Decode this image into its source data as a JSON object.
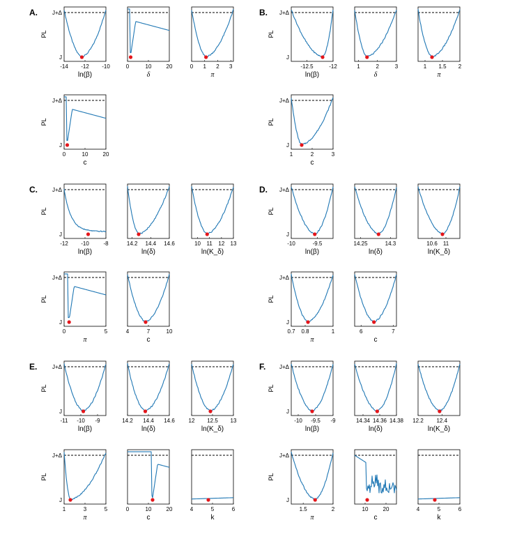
{
  "y_top_label": "J+Δ",
  "y_bottom_label": "J",
  "y_axis_title": "PL",
  "chart_data": [
    {
      "panel": "A.",
      "type": "line",
      "xlabel": "ln(β)",
      "italic": false,
      "xlim": [
        -14,
        -10
      ],
      "xticks": [
        "-14",
        "-12",
        "-10"
      ],
      "xtickvals": [
        -14,
        -12,
        -10
      ],
      "optimum": -12.3,
      "shape": "u",
      "threshold": true
    },
    {
      "panel": "A.",
      "type": "line",
      "xlabel": "δ",
      "italic": true,
      "xlim": [
        0,
        20
      ],
      "xticks": [
        "0",
        "10",
        "20"
      ],
      "xtickvals": [
        0,
        10,
        20
      ],
      "optimum": 1.5,
      "shape": "spike",
      "threshold": true
    },
    {
      "panel": "A.",
      "type": "line",
      "xlabel": "π",
      "italic": true,
      "xlim": [
        0,
        3.2
      ],
      "xticks": [
        "0",
        "1",
        "2",
        "3"
      ],
      "xtickvals": [
        0,
        1,
        2,
        3
      ],
      "optimum": 1.1,
      "shape": "u",
      "threshold": true
    },
    {
      "panel": "A.",
      "type": "line",
      "xlabel": "c",
      "italic": false,
      "xlim": [
        0,
        20
      ],
      "xticks": [
        "0",
        "10",
        "20"
      ],
      "xtickvals": [
        0,
        10,
        20
      ],
      "optimum": 1.5,
      "shape": "spike",
      "threshold": true
    },
    {
      "panel": "B.",
      "type": "line",
      "xlabel": "ln(β)",
      "italic": false,
      "xlim": [
        -12.8,
        -12
      ],
      "xticks": [
        "-12.5",
        "-12"
      ],
      "xtickvals": [
        -12.5,
        -12
      ],
      "optimum": -12.2,
      "shape": "u",
      "threshold": true
    },
    {
      "panel": "B.",
      "type": "line",
      "xlabel": "δ",
      "italic": true,
      "xlim": [
        0.8,
        3
      ],
      "xticks": [
        "1",
        "2",
        "3"
      ],
      "xtickvals": [
        1,
        2,
        3
      ],
      "optimum": 1.45,
      "shape": "u",
      "threshold": true
    },
    {
      "panel": "B.",
      "type": "line",
      "xlabel": "π",
      "italic": true,
      "xlim": [
        0.8,
        2
      ],
      "xticks": [
        "1",
        "1.5",
        "2"
      ],
      "xtickvals": [
        1,
        1.5,
        2
      ],
      "optimum": 1.2,
      "shape": "u",
      "threshold": true
    },
    {
      "panel": "B.",
      "type": "line",
      "xlabel": "c",
      "italic": false,
      "xlim": [
        1,
        3
      ],
      "xticks": [
        "1",
        "2",
        "3"
      ],
      "xtickvals": [
        1,
        2,
        3
      ],
      "optimum": 1.5,
      "shape": "u",
      "threshold": true
    },
    {
      "panel": "C.",
      "type": "line",
      "xlabel": "ln(β)",
      "italic": false,
      "xlim": [
        -12,
        -8
      ],
      "xticks": [
        "-12",
        "-10",
        "-8"
      ],
      "xtickvals": [
        -12,
        -10,
        -8
      ],
      "optimum": -9.7,
      "shape": "decay",
      "threshold": true
    },
    {
      "panel": "C.",
      "type": "line",
      "xlabel": "ln(δ)",
      "italic": false,
      "xlim": [
        14.15,
        14.6
      ],
      "xticks": [
        "14.2",
        "14.4",
        "14.6"
      ],
      "xtickvals": [
        14.2,
        14.4,
        14.6
      ],
      "optimum": 14.27,
      "shape": "u",
      "threshold": true
    },
    {
      "panel": "C.",
      "type": "line",
      "xlabel": "ln(K_δ)",
      "italic": false,
      "xlim": [
        9.5,
        13
      ],
      "xticks": [
        "10",
        "11",
        "12",
        "13"
      ],
      "xtickvals": [
        10,
        11,
        12,
        13
      ],
      "optimum": 10.8,
      "shape": "u",
      "threshold": true
    },
    {
      "panel": "C.",
      "type": "line",
      "xlabel": "π",
      "italic": true,
      "xlim": [
        0,
        5
      ],
      "xticks": [
        "0",
        "5"
      ],
      "xtickvals": [
        0,
        5
      ],
      "optimum": 0.6,
      "shape": "spike",
      "threshold": true
    },
    {
      "panel": "C.",
      "type": "line",
      "xlabel": "c",
      "italic": false,
      "xlim": [
        4,
        10
      ],
      "xticks": [
        "4",
        "7",
        "10"
      ],
      "xtickvals": [
        4,
        7,
        10
      ],
      "optimum": 6.6,
      "shape": "u",
      "threshold": true
    },
    {
      "panel": "D.",
      "type": "line",
      "xlabel": "ln(β)",
      "italic": false,
      "xlim": [
        -10,
        -9.2
      ],
      "xticks": [
        "-10",
        "-9.5"
      ],
      "xtickvals": [
        -10,
        -9.5
      ],
      "optimum": -9.55,
      "shape": "u",
      "threshold": true
    },
    {
      "panel": "D.",
      "type": "line",
      "xlabel": "ln(δ)",
      "italic": false,
      "xlim": [
        14.24,
        14.31
      ],
      "xticks": [
        "14.25",
        "14.3"
      ],
      "xtickvals": [
        14.25,
        14.3
      ],
      "optimum": 14.28,
      "shape": "u",
      "threshold": true
    },
    {
      "panel": "D.",
      "type": "line",
      "xlabel": "ln(K_δ)",
      "italic": false,
      "xlim": [
        10.2,
        11.4
      ],
      "xticks": [
        "10.6",
        "11"
      ],
      "xtickvals": [
        10.6,
        11
      ],
      "optimum": 10.9,
      "shape": "u",
      "threshold": true
    },
    {
      "panel": "D.",
      "type": "line",
      "xlabel": "π",
      "italic": true,
      "xlim": [
        0.7,
        1
      ],
      "xticks": [
        "0.7",
        "0.8",
        "1"
      ],
      "xtickvals": [
        0.7,
        0.8,
        1
      ],
      "optimum": 0.82,
      "shape": "u",
      "threshold": true
    },
    {
      "panel": "D.",
      "type": "line",
      "xlabel": "c",
      "italic": false,
      "xlim": [
        5.8,
        7.1
      ],
      "xticks": [
        "6",
        "7"
      ],
      "xtickvals": [
        6,
        7
      ],
      "optimum": 6.4,
      "shape": "u",
      "threshold": true
    },
    {
      "panel": "E.",
      "type": "line",
      "xlabel": "ln(β)",
      "italic": false,
      "xlim": [
        -11,
        -8.5
      ],
      "xticks": [
        "-11",
        "-10",
        "-9"
      ],
      "xtickvals": [
        -11,
        -10,
        -9
      ],
      "optimum": -9.85,
      "shape": "u",
      "threshold": true
    },
    {
      "panel": "E.",
      "type": "line",
      "xlabel": "ln(δ)",
      "italic": false,
      "xlim": [
        14.2,
        14.6
      ],
      "xticks": [
        "14.2",
        "14.4",
        "14.6"
      ],
      "xtickvals": [
        14.2,
        14.4,
        14.6
      ],
      "optimum": 14.37,
      "shape": "u",
      "threshold": true
    },
    {
      "panel": "E.",
      "type": "line",
      "xlabel": "ln(K_δ)",
      "italic": false,
      "xlim": [
        12,
        13
      ],
      "xticks": [
        "12",
        "12.5",
        "13"
      ],
      "xtickvals": [
        12,
        12.5,
        13
      ],
      "optimum": 12.45,
      "shape": "u",
      "threshold": true
    },
    {
      "panel": "E.",
      "type": "line",
      "xlabel": "π",
      "italic": true,
      "xlim": [
        1,
        5
      ],
      "xticks": [
        "1",
        "3",
        "5"
      ],
      "xtickvals": [
        1,
        3,
        5
      ],
      "optimum": 1.6,
      "shape": "u",
      "threshold": true
    },
    {
      "panel": "E.",
      "type": "line",
      "xlabel": "c",
      "italic": false,
      "xlim": [
        0,
        20
      ],
      "xticks": [
        "0",
        "10",
        "20"
      ],
      "xtickvals": [
        0,
        10,
        20
      ],
      "optimum": 12,
      "shape": "spike",
      "threshold": true
    },
    {
      "panel": "E.",
      "type": "line",
      "xlabel": "k",
      "italic": false,
      "xlim": [
        4,
        6
      ],
      "xticks": [
        "4",
        "5",
        "6"
      ],
      "xtickvals": [
        4,
        5,
        6
      ],
      "optimum": 4.8,
      "shape": "flat",
      "threshold": true
    },
    {
      "panel": "F.",
      "type": "line",
      "xlabel": "ln(β)",
      "italic": false,
      "xlim": [
        -10.2,
        -9
      ],
      "xticks": [
        "-10",
        "-9.5",
        "-9"
      ],
      "xtickvals": [
        -10,
        -9.5,
        -9
      ],
      "optimum": -9.6,
      "shape": "u",
      "threshold": true
    },
    {
      "panel": "F.",
      "type": "line",
      "xlabel": "ln(δ)",
      "italic": false,
      "xlim": [
        14.33,
        14.38
      ],
      "xticks": [
        "14.34",
        "14.36",
        "14.38"
      ],
      "xtickvals": [
        14.34,
        14.36,
        14.38
      ],
      "optimum": 14.357,
      "shape": "u",
      "threshold": true
    },
    {
      "panel": "F.",
      "type": "line",
      "xlabel": "ln(K_δ)",
      "italic": false,
      "xlim": [
        12.2,
        12.55
      ],
      "xticks": [
        "12.2",
        "12.4"
      ],
      "xtickvals": [
        12.2,
        12.4
      ],
      "optimum": 12.38,
      "shape": "u",
      "threshold": true
    },
    {
      "panel": "F.",
      "type": "line",
      "xlabel": "π",
      "italic": true,
      "xlim": [
        1.3,
        2
      ],
      "xticks": [
        "1.5",
        "2"
      ],
      "xtickvals": [
        1.5,
        2
      ],
      "optimum": 1.7,
      "shape": "u",
      "threshold": true
    },
    {
      "panel": "F.",
      "type": "line",
      "xlabel": "c",
      "italic": false,
      "xlim": [
        5,
        25
      ],
      "xticks": [
        "10",
        "20"
      ],
      "xtickvals": [
        10,
        20
      ],
      "optimum": 11,
      "shape": "noisy",
      "threshold": true
    },
    {
      "panel": "F.",
      "type": "line",
      "xlabel": "k",
      "italic": false,
      "xlim": [
        4,
        6
      ],
      "xticks": [
        "4",
        "5",
        "6"
      ],
      "xtickvals": [
        4,
        5,
        6
      ],
      "optimum": 4.8,
      "shape": "flat",
      "threshold": true
    }
  ]
}
